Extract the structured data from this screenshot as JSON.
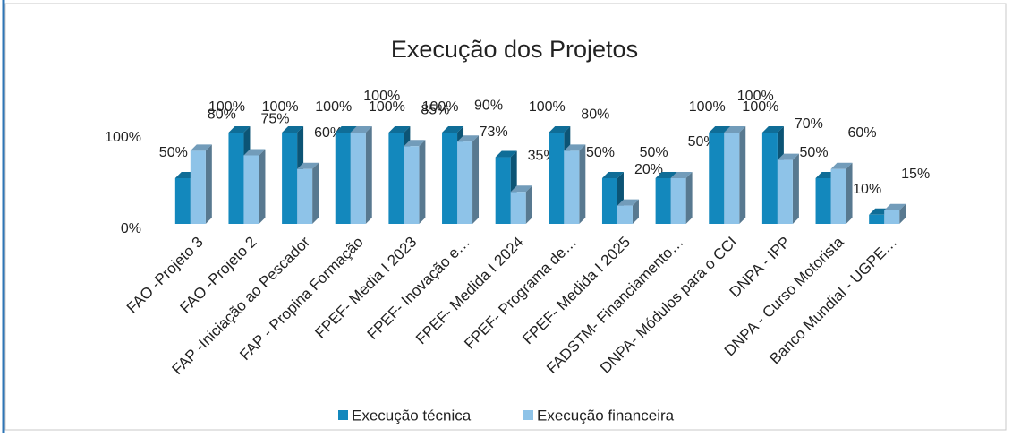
{
  "chart_data": {
    "type": "bar3d",
    "title": "Execução dos Projetos",
    "categories": [
      "FAO -Projeto 3",
      "FAO -Projeto 2",
      "FAP -Iniciação ao Pescador",
      "FAP - Propina Formação",
      "FPEF- Media I 2023",
      "FPEF- Inovação e…",
      "FPEF- Medida I 2024",
      "FPEF- Programa de…",
      "FPEF- Medida I 2025",
      "FADSTM- Financiamento…",
      "DNPA- Módulos para o CCI",
      "DNPA - IPP",
      "DNPA - Curso Motorista",
      "Banco Mundial - UGPE…"
    ],
    "series": [
      {
        "name": "Execução técnica",
        "color": "#1388bd",
        "values": [
          50,
          100,
          100,
          100,
          100,
          100,
          73,
          100,
          50,
          50,
          100,
          100,
          50,
          10
        ],
        "value_labels": [
          "50%",
          "100%",
          "100%",
          "100%",
          "100%",
          "100%",
          "73%",
          "100%",
          "50%",
          "50%",
          "100%",
          "100%",
          "50%",
          "10%"
        ]
      },
      {
        "name": "Execução financeira",
        "color": "#8ec3e8",
        "values": [
          80,
          75,
          60,
          100,
          85,
          90,
          35,
          80,
          20,
          50,
          100,
          70,
          60,
          15
        ],
        "value_labels": [
          "80%",
          "75%",
          "60%",
          "100%",
          "85%",
          "90%",
          "35%",
          "80%",
          "20%",
          "50%",
          "100%",
          "70%",
          "60%",
          "15%"
        ]
      }
    ],
    "ylim": [
      0,
      100
    ],
    "yticks": [
      {
        "value": 0,
        "label": "0%"
      },
      {
        "value": 100,
        "label": "100%"
      }
    ],
    "legend": "bottom"
  }
}
